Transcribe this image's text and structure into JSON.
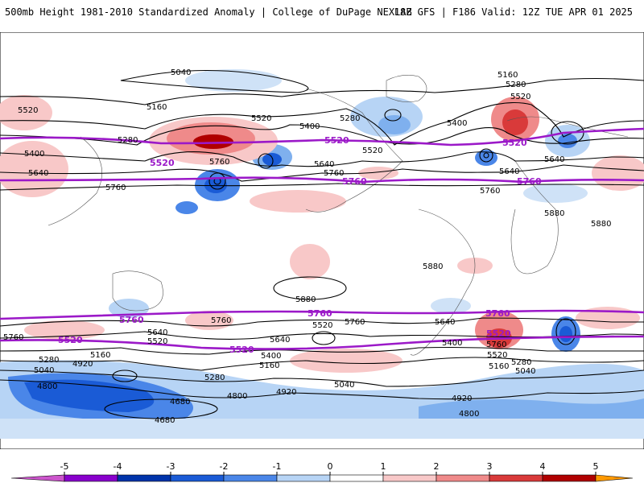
{
  "header": {
    "title_left": "500mb Height 1981-2010 Standardized Anomaly | College of DuPage NEXLAB",
    "title_right": "18Z GFS | F186 Valid: 12Z TUE APR 01 2025"
  },
  "map": {
    "height_labels": [
      "5040",
      "5160",
      "5280",
      "5400",
      "5520",
      "5640",
      "5760",
      "5880",
      "4920",
      "4800",
      "4680"
    ],
    "highlight_labels": [
      "5520",
      "5760"
    ],
    "highlight_color": "#9b19c8",
    "contour_color": "#000000"
  },
  "colorbar": {
    "ticks": [
      "-5",
      "-4",
      "-3",
      "-2",
      "-1",
      "0",
      "1",
      "2",
      "3",
      "4",
      "5"
    ],
    "colors": [
      "#cc55cc",
      "#8800cc",
      "#0033aa",
      "#1a5bd6",
      "#4a86e8",
      "#b7d4f5",
      "#ffffff",
      "#f8c8c8",
      "#ef8a8a",
      "#d93a3a",
      "#b00000",
      "#ff9900"
    ]
  }
}
